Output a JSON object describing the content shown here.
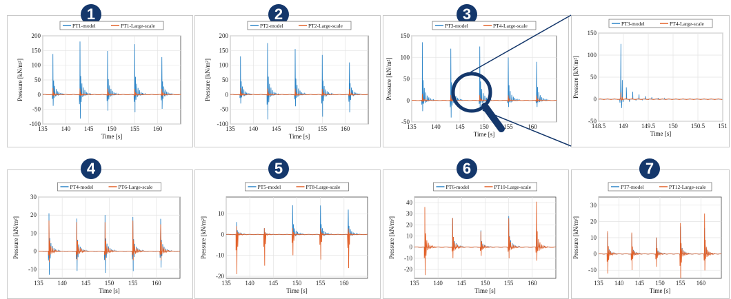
{
  "colors": {
    "model": "#2f86c8",
    "large": "#e2622b",
    "badge": "#14376b",
    "magnifier": "#14376b"
  },
  "common": {
    "xlabel": "Time [s]",
    "ylabel": "Pressure [kN/m²]"
  },
  "badges": [
    "1",
    "2",
    "3",
    "4",
    "5",
    "6",
    "7"
  ],
  "chart_data": [
    {
      "type": "line",
      "badge": "1",
      "series": [
        {
          "name": "PT1-model",
          "peaks": [
            138,
            180,
            148,
            172,
            128
          ],
          "troughs": [
            -38,
            -82,
            -55,
            -60,
            -48
          ]
        },
        {
          "name": "PT1-Large-scale",
          "peaks": [
            22,
            20,
            20,
            20,
            20
          ],
          "troughs": [
            -5,
            -5,
            -5,
            -5,
            -5
          ]
        }
      ],
      "peak_times": [
        137.2,
        143.1,
        149.1,
        155.0,
        160.9
      ],
      "xlim": [
        135,
        165
      ],
      "ylim": [
        -100,
        200
      ],
      "xticks": [
        135,
        140,
        145,
        150,
        155,
        160
      ],
      "yticks": [
        -100,
        -50,
        0,
        50,
        100,
        150,
        200
      ],
      "xlabel": "Time [s]",
      "ylabel": "Pressure [kN/m²]"
    },
    {
      "type": "line",
      "badge": "2",
      "series": [
        {
          "name": "PT2-model",
          "peaks": [
            130,
            175,
            155,
            135,
            110
          ],
          "troughs": [
            -30,
            -85,
            -40,
            -75,
            -60
          ]
        },
        {
          "name": "PT2-Large-scale",
          "peaks": [
            22,
            20,
            20,
            20,
            20
          ],
          "troughs": [
            -5,
            -5,
            -5,
            -5,
            -5
          ]
        }
      ],
      "peak_times": [
        137.2,
        143.1,
        149.1,
        155.0,
        160.9
      ],
      "xlim": [
        135,
        165
      ],
      "ylim": [
        -100,
        200
      ],
      "xticks": [
        135,
        140,
        145,
        150,
        155,
        160
      ],
      "yticks": [
        -100,
        -50,
        0,
        50,
        100,
        150,
        200
      ],
      "xlabel": "Time [s]",
      "ylabel": "Pressure [kN/m²]"
    },
    {
      "type": "line",
      "badge": "3",
      "series": [
        {
          "name": "PT3-model",
          "peaks": [
            135,
            120,
            125,
            100,
            90
          ],
          "troughs": [
            -25,
            -40,
            -20,
            -15,
            -15
          ]
        },
        {
          "name": "PT4-Large-scale",
          "peaks": [
            15,
            12,
            12,
            12,
            12
          ],
          "troughs": [
            -3,
            -3,
            -3,
            -3,
            -3
          ]
        }
      ],
      "peak_times": [
        137.2,
        143.1,
        149.1,
        155.0,
        160.9
      ],
      "xlim": [
        135,
        165
      ],
      "ylim": [
        -50,
        150
      ],
      "xticks": [
        135,
        140,
        145,
        150,
        155,
        160
      ],
      "yticks": [
        -50,
        0,
        50,
        100,
        150
      ],
      "xlabel": "Time [s]",
      "ylabel": "Pressure [kN/m²]"
    },
    {
      "type": "line",
      "badge": "",
      "series": [
        {
          "name": "PT3-model",
          "peaks": [
            125
          ],
          "troughs": [
            -20
          ]
        },
        {
          "name": "PT4-Large-scale",
          "peaks": [
            15
          ],
          "troughs": [
            -3
          ]
        }
      ],
      "peak_times": [
        148.95
      ],
      "xlim": [
        148.5,
        151
      ],
      "ylim": [
        -50,
        150
      ],
      "xticks": [
        148.5,
        149,
        149.5,
        150,
        150.5,
        151
      ],
      "yticks": [
        -50,
        0,
        50,
        100,
        150
      ],
      "xlabel": "Time [s]",
      "ylabel": "Pressure [kN/m²]"
    },
    {
      "type": "line",
      "badge": "4",
      "series": [
        {
          "name": "PT4-model",
          "peaks": [
            21,
            18,
            20,
            19,
            18
          ],
          "troughs": [
            -13,
            -11,
            -12,
            -11,
            -9
          ]
        },
        {
          "name": "PT6-Large-scale",
          "peaks": [
            17,
            16,
            16,
            17,
            15
          ],
          "troughs": [
            -6,
            -5,
            -5,
            -5,
            -5
          ]
        }
      ],
      "peak_times": [
        137.2,
        143.1,
        149.1,
        155.0,
        160.9
      ],
      "xlim": [
        135,
        165
      ],
      "ylim": [
        -15,
        30
      ],
      "xticks": [
        135,
        140,
        145,
        150,
        155,
        160
      ],
      "yticks": [
        -10,
        0,
        10,
        20,
        30
      ],
      "xlabel": "Time [s]",
      "ylabel": "Pressure [kN/m²]"
    },
    {
      "type": "line",
      "badge": "5",
      "series": [
        {
          "name": "PT5-model",
          "peaks": [
            6,
            3,
            14,
            14,
            12
          ],
          "troughs": [
            -2,
            -2,
            -2,
            -2,
            -2
          ]
        },
        {
          "name": "PT8-Large-scale",
          "peaks": [
            4,
            3,
            3,
            3,
            3
          ],
          "troughs": [
            -19,
            -15,
            -10,
            -12,
            -16
          ]
        }
      ],
      "peak_times": [
        137.2,
        143.1,
        149.1,
        155.0,
        160.9
      ],
      "xlim": [
        135,
        165
      ],
      "ylim": [
        -21,
        18
      ],
      "xticks": [
        135,
        140,
        145,
        150,
        155,
        160
      ],
      "yticks": [
        -20,
        -10,
        0,
        10
      ],
      "xlabel": "Time [s]",
      "ylabel": "Pressure [kN/m²]"
    },
    {
      "type": "line",
      "badge": "6",
      "series": [
        {
          "name": "PT6-model",
          "peaks": [
            5,
            26,
            15,
            28,
            20
          ],
          "troughs": [
            -3,
            -3,
            -3,
            -3,
            -3
          ]
        },
        {
          "name": "PT10-Large-scale",
          "peaks": [
            36,
            26,
            14,
            26,
            41
          ],
          "troughs": [
            -25,
            -10,
            -8,
            -10,
            -12
          ]
        }
      ],
      "peak_times": [
        137.2,
        143.1,
        149.1,
        155.0,
        160.9
      ],
      "xlim": [
        135,
        165
      ],
      "ylim": [
        -28,
        45
      ],
      "xticks": [
        135,
        140,
        145,
        150,
        155,
        160
      ],
      "yticks": [
        -20,
        -10,
        0,
        10,
        20,
        30,
        40
      ],
      "xlabel": "Time [s]",
      "ylabel": "Pressure [kN/m²]"
    },
    {
      "type": "line",
      "badge": "7",
      "series": [
        {
          "name": "PT7-model",
          "peaks": [
            13,
            12,
            10,
            17,
            16
          ],
          "troughs": [
            -4,
            -4,
            -4,
            -4,
            -4
          ]
        },
        {
          "name": "PT12-Large-scale",
          "peaks": [
            14,
            13,
            10,
            19,
            25
          ],
          "troughs": [
            -12,
            -10,
            -8,
            -18,
            -10
          ]
        }
      ],
      "peak_times": [
        137.2,
        143.1,
        149.1,
        155.0,
        160.9
      ],
      "xlim": [
        135,
        165
      ],
      "ylim": [
        -15,
        35
      ],
      "xticks": [
        135,
        140,
        145,
        150,
        155,
        160
      ],
      "yticks": [
        -10,
        0,
        10,
        20,
        30
      ],
      "xlabel": "Time [s]",
      "ylabel": "Pressure [kN/m²]"
    }
  ]
}
